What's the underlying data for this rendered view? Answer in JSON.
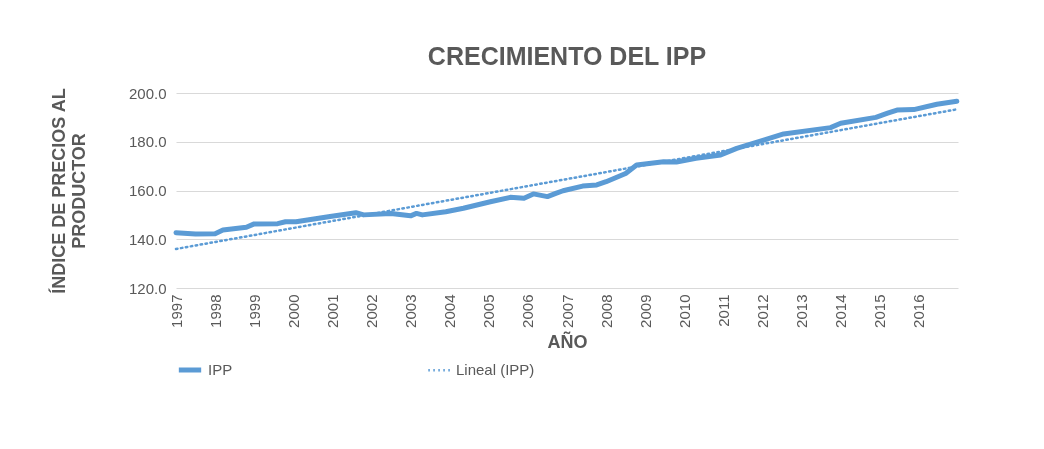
{
  "chart_data": {
    "type": "line",
    "title": "CRECIMIENTO DEL IPP",
    "xlabel": "AÑO",
    "ylabel": "ÍNDICE DE PRECIOS AL PRODUCTOR",
    "xlim": [
      1997,
      2017
    ],
    "xticks": [
      1997,
      1998,
      1999,
      2000,
      2001,
      2002,
      2003,
      2004,
      2005,
      2006,
      2007,
      2008,
      2009,
      2010,
      2011,
      2012,
      2013,
      2014,
      2015,
      2016
    ],
    "ylim": [
      120,
      200
    ],
    "yticks": [
      {
        "value": 120,
        "label": "120.0"
      },
      {
        "value": 140,
        "label": "140.0"
      },
      {
        "value": 160,
        "label": "160.0"
      },
      {
        "value": 180,
        "label": "180.0"
      },
      {
        "value": 200,
        "label": "200.0"
      }
    ],
    "grid": "y",
    "legend": "bottom",
    "series": [
      {
        "name": "IPP",
        "color": "#5b9bd5",
        "line_style": "solid",
        "x": [
          1997,
          1997.5,
          1998,
          1998.2,
          1998.8,
          1999,
          1999.6,
          1999.8,
          2000.07,
          2000.94,
          2001.6,
          2001.8,
          2002.5,
          2003,
          2003.15,
          2003.3,
          2003.9,
          2004.35,
          2005.04,
          2005.55,
          2005.9,
          2006.14,
          2006.5,
          2006.73,
          2006.9,
          2007.4,
          2007.76,
          2008,
          2008.5,
          2008.78,
          2009.47,
          2009.8,
          2010.3,
          2010.93,
          2011.34,
          2012.03,
          2012.54,
          2013.74,
          2014,
          2014.9,
          2015.2,
          2015.44,
          2015.87,
          2016.46,
          2016.97
        ],
        "values": [
          142.7,
          142.2,
          142.3,
          143.8,
          144.9,
          146.3,
          146.4,
          147.2,
          147.2,
          149.3,
          150.9,
          150,
          150.6,
          149.6,
          150.6,
          150,
          151.3,
          152.7,
          155.4,
          157.2,
          156.8,
          158.6,
          157.5,
          158.9,
          159.9,
          161.8,
          162.3,
          163.6,
          167,
          170.5,
          171.8,
          171.7,
          173.2,
          174.6,
          177.3,
          180.7,
          183.2,
          185.8,
          187.6,
          190,
          191.7,
          193,
          193.2,
          195.4,
          196.6
        ]
      },
      {
        "name": "Lineal (IPP)",
        "color": "#5b9bd5",
        "line_style": "dotted",
        "x": [
          1997,
          2016.97
        ],
        "values": [
          136,
          193.3
        ]
      }
    ]
  }
}
